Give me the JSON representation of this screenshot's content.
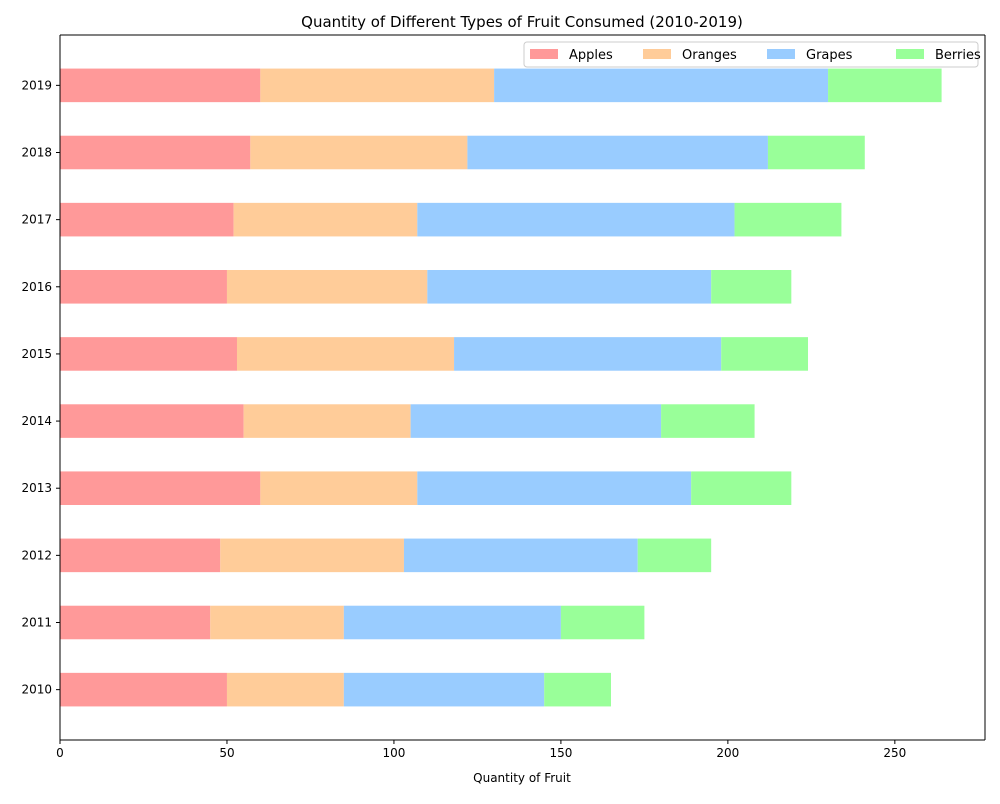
{
  "chart_data": {
    "type": "bar",
    "orientation": "horizontal",
    "stacked": true,
    "title": "Quantity of Different Types of Fruit Consumed (2010-2019)",
    "xlabel": "Quantity of Fruit",
    "ylabel": "",
    "xlim": [
      0,
      277
    ],
    "xticks": [
      0,
      50,
      100,
      150,
      200,
      250
    ],
    "categories": [
      "2010",
      "2011",
      "2012",
      "2013",
      "2014",
      "2015",
      "2016",
      "2017",
      "2018",
      "2019"
    ],
    "series": [
      {
        "name": "Apples",
        "color": "#ff9999",
        "values": [
          50,
          45,
          48,
          60,
          55,
          53,
          50,
          52,
          57,
          60
        ]
      },
      {
        "name": "Oranges",
        "color": "#ffcc99",
        "values": [
          35,
          40,
          55,
          47,
          50,
          65,
          60,
          55,
          65,
          70
        ]
      },
      {
        "name": "Grapes",
        "color": "#99ccff",
        "values": [
          60,
          65,
          70,
          82,
          75,
          80,
          85,
          95,
          90,
          100
        ]
      },
      {
        "name": "Berries",
        "color": "#99ff99",
        "values": [
          20,
          25,
          22,
          30,
          28,
          26,
          24,
          32,
          29,
          34
        ]
      }
    ],
    "grid": false,
    "legend_position": "top-right",
    "legend_columns": 4
  }
}
